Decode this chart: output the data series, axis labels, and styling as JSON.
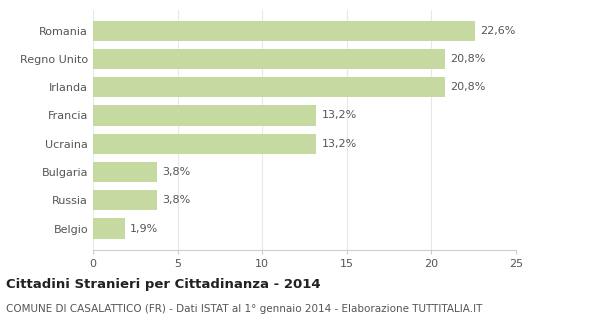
{
  "categories": [
    "Romania",
    "Regno Unito",
    "Irlanda",
    "Francia",
    "Ucraina",
    "Bulgaria",
    "Russia",
    "Belgio"
  ],
  "values": [
    22.6,
    20.8,
    20.8,
    13.2,
    13.2,
    3.8,
    3.8,
    1.9
  ],
  "labels": [
    "22,6%",
    "20,8%",
    "20,8%",
    "13,2%",
    "13,2%",
    "3,8%",
    "3,8%",
    "1,9%"
  ],
  "bar_color": "#c5d9a0",
  "background_color": "#ffffff",
  "xlim": [
    0,
    25
  ],
  "xticks": [
    0,
    5,
    10,
    15,
    20,
    25
  ],
  "title": "Cittadini Stranieri per Cittadinanza - 2014",
  "subtitle": "COMUNE DI CASALATTICO (FR) - Dati ISTAT al 1° gennaio 2014 - Elaborazione TUTTITALIA.IT",
  "title_fontsize": 9.5,
  "subtitle_fontsize": 7.5,
  "label_fontsize": 8,
  "tick_fontsize": 8,
  "ytick_fontsize": 8,
  "grid_color": "#e8e8e8",
  "axes_edge_color": "#cccccc",
  "text_color": "#555555"
}
